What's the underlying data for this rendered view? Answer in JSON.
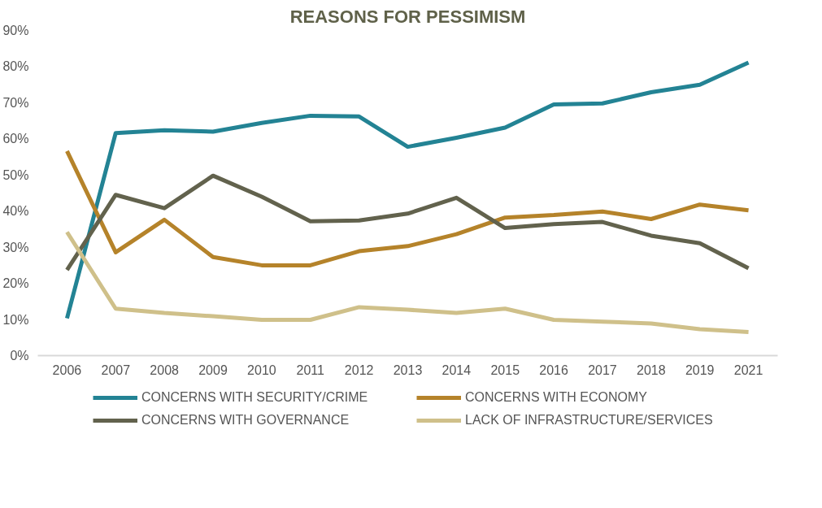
{
  "chart_data": {
    "type": "line",
    "title": "REASONS FOR PESSIMISM",
    "categories": [
      "2006",
      "2007",
      "2008",
      "2009",
      "2010",
      "2011",
      "2012",
      "2013",
      "2014",
      "2015",
      "2016",
      "2017",
      "2018",
      "2019",
      "2021"
    ],
    "ylim": [
      0,
      90
    ],
    "yticks": [
      {
        "value": 0,
        "label": "0%"
      },
      {
        "value": 10,
        "label": "10%"
      },
      {
        "value": 20,
        "label": "20%"
      },
      {
        "value": 30,
        "label": "30%"
      },
      {
        "value": 40,
        "label": "40%"
      },
      {
        "value": 50,
        "label": "50%"
      },
      {
        "value": 60,
        "label": "60%"
      },
      {
        "value": 70,
        "label": "70%"
      },
      {
        "value": 80,
        "label": "80%"
      },
      {
        "value": 90,
        "label": "90%"
      }
    ],
    "grid": false,
    "legend": "bottom",
    "marker": "none",
    "line_style": "solid",
    "series": [
      {
        "name": "CONCERNS WITH SECURITY/CRIME",
        "color": "#238394",
        "values": [
          10.3,
          61.6,
          62.4,
          62,
          64.4,
          66.4,
          66.2,
          57.8,
          60.3,
          63.1,
          69.5,
          69.8,
          72.9,
          75,
          81.1
        ]
      },
      {
        "name": "CONCERNS WITH ECONOMY",
        "color": "#b5832a",
        "values": [
          56.6,
          28.6,
          37.6,
          27.3,
          25,
          25,
          28.9,
          30.3,
          33.6,
          38.2,
          38.9,
          39.9,
          37.8,
          41.8,
          40.2
        ]
      },
      {
        "name": "CONCERNS WITH GOVERNANCE",
        "color": "#62624d",
        "values": [
          23.7,
          44.5,
          40.8,
          49.8,
          44,
          37.2,
          37.4,
          39.3,
          43.7,
          35.3,
          36.4,
          37,
          33.2,
          31.1,
          24.2
        ]
      },
      {
        "name": "LACK OF INFRASTRUCTURE/SERVICES",
        "color": "#cfc08a",
        "values": [
          34.2,
          13,
          11.8,
          10.9,
          9.9,
          9.9,
          13.4,
          12.7,
          11.8,
          13,
          9.9,
          9.4,
          8.9,
          7.3,
          6.5
        ]
      }
    ]
  }
}
